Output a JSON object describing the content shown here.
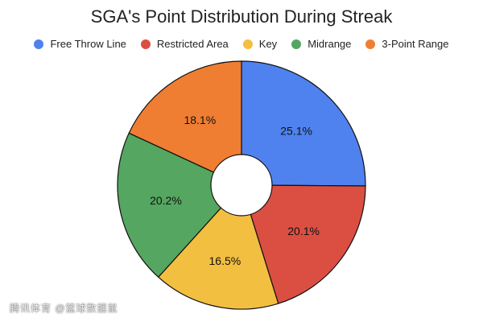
{
  "chart_data": {
    "type": "pie",
    "title": "SGA's Point Distribution During Streak",
    "legend_position": "top",
    "inner_hole": true,
    "slices": [
      {
        "name": "Free Throw Line",
        "value": 25.1,
        "label": "25.1%",
        "color": "#4f82ee"
      },
      {
        "name": "Restricted Area",
        "value": 20.1,
        "label": "20.1%",
        "color": "#db4f43"
      },
      {
        "name": "Key",
        "value": 16.5,
        "label": "16.5%",
        "color": "#f3bf41"
      },
      {
        "name": "Midrange",
        "value": 20.2,
        "label": "20.2%",
        "color": "#55a660"
      },
      {
        "name": "3-Point Range",
        "value": 18.1,
        "label": "18.1%",
        "color": "#ef7e33"
      }
    ]
  },
  "watermark": {
    "text": "腾讯体育 @篮球数据鼠"
  }
}
